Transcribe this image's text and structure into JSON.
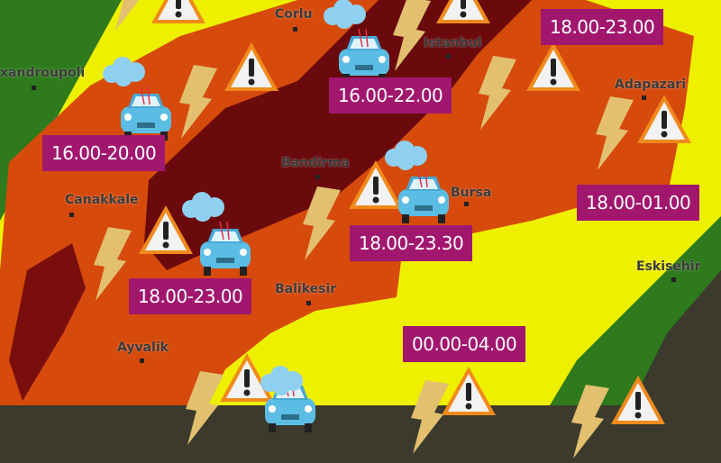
{
  "map": {
    "zone_colors": {
      "background": "#3b3a2c",
      "green": "#2f7a1c",
      "yellow": "#eef000",
      "orange": "#d64a0c",
      "dark_red": "#6a0a0c"
    },
    "label_color": "#a2176e",
    "cities": [
      "Corlu",
      "Istanbul",
      "xandroupoli",
      "Adapazari",
      "Bandirma",
      "Canakkale",
      "Bursa",
      "Eskisehir",
      "Balikesir",
      "Ayvalik"
    ],
    "time_windows": [
      "18.00-23.00",
      "16.00-22.00",
      "16.00-20.00",
      "18.00-01.00",
      "18.00-23.30",
      "18.00-23.00",
      "00.00-04.00"
    ],
    "icons": [
      "warning-triangle-icon",
      "lightning-icon",
      "car-hail-icon",
      "cloud-icon"
    ]
  }
}
